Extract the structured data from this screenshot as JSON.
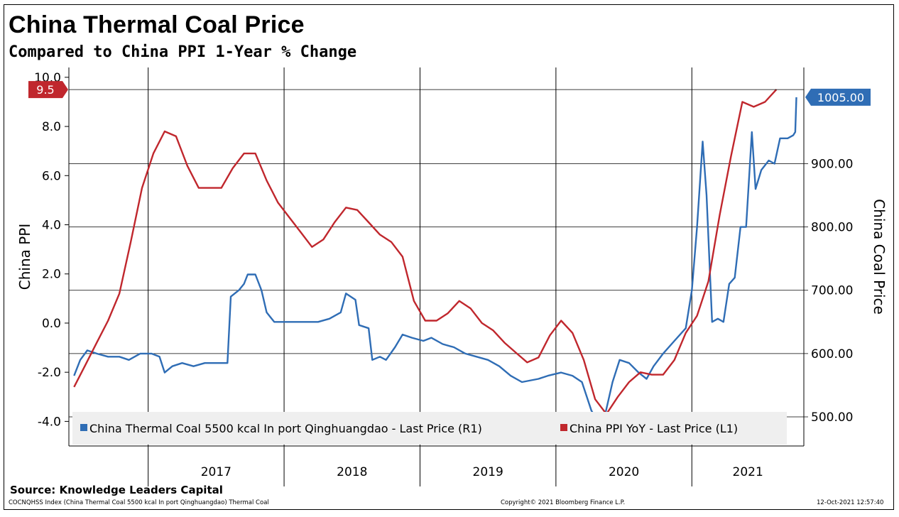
{
  "title": "China Thermal Coal Price",
  "subtitle": "Compared to China PPI 1-Year % Change",
  "source": "Source: Knowledge Leaders Capital",
  "footer": {
    "index_note": "COCNQHSS Index (China Thermal Coal 5500 kcal In port Qinghuangdao) Thermal Coal",
    "copyright": "Copyright© 2021 Bloomberg Finance L.P.",
    "timestamp": "12-Oct-2021 12:57:40"
  },
  "colors": {
    "coal": "#2f6db5",
    "ppi": "#c0272d",
    "legend_bg": "#efefef",
    "grid": "#000000"
  },
  "chart_data": {
    "type": "line",
    "x_axis": {
      "labels": [
        "2017",
        "2018",
        "2019",
        "2020",
        "2021"
      ],
      "range": [
        "2016-06",
        "2021-10"
      ]
    },
    "left_axis": {
      "title": "China PPI",
      "range": [
        -5,
        10.4
      ],
      "ticks": [
        "10.0",
        "8.0",
        "6.0",
        "4.0",
        "2.0",
        "0.0",
        "-2.0",
        "-4.0"
      ]
    },
    "right_axis": {
      "title": "China Coal Price",
      "range": [
        454,
        1052
      ],
      "ticks": [
        "900.00",
        "800.00",
        "700.00",
        "600.00",
        "500.00"
      ]
    },
    "last_value_labels": {
      "ppi": "9.5",
      "coal": "1005.00"
    },
    "legend": {
      "placement": "bottom"
    },
    "series": [
      {
        "name": "China Thermal Coal 5500 kcal In port Qinghuangdao - Last Price (R1)",
        "axis": "right",
        "points": [
          [
            "2016-06-15",
            565
          ],
          [
            "2016-07-01",
            590
          ],
          [
            "2016-07-20",
            605
          ],
          [
            "2016-08-15",
            600
          ],
          [
            "2016-09-15",
            595
          ],
          [
            "2016-10-15",
            595
          ],
          [
            "2016-11-10",
            590
          ],
          [
            "2016-12-10",
            600
          ],
          [
            "2017-01-10",
            600
          ],
          [
            "2017-02-01",
            595
          ],
          [
            "2017-02-15",
            570
          ],
          [
            "2017-03-05",
            580
          ],
          [
            "2017-04-01",
            585
          ],
          [
            "2017-05-01",
            580
          ],
          [
            "2017-06-01",
            585
          ],
          [
            "2017-07-01",
            585
          ],
          [
            "2017-08-01",
            585
          ],
          [
            "2017-08-10",
            690
          ],
          [
            "2017-09-01",
            700
          ],
          [
            "2017-09-15",
            710
          ],
          [
            "2017-09-25",
            725
          ],
          [
            "2017-10-15",
            725
          ],
          [
            "2017-11-01",
            700
          ],
          [
            "2017-11-15",
            665
          ],
          [
            "2017-12-05",
            650
          ],
          [
            "2018-01-01",
            650
          ],
          [
            "2018-02-01",
            650
          ],
          [
            "2018-03-01",
            650
          ],
          [
            "2018-04-01",
            650
          ],
          [
            "2018-05-01",
            655
          ],
          [
            "2018-06-01",
            665
          ],
          [
            "2018-06-15",
            695
          ],
          [
            "2018-07-10",
            685
          ],
          [
            "2018-07-20",
            645
          ],
          [
            "2018-08-15",
            640
          ],
          [
            "2018-08-25",
            590
          ],
          [
            "2018-09-15",
            595
          ],
          [
            "2018-10-01",
            590
          ],
          [
            "2018-10-25",
            610
          ],
          [
            "2018-11-15",
            630
          ],
          [
            "2018-12-10",
            625
          ],
          [
            "2019-01-10",
            620
          ],
          [
            "2019-02-01",
            625
          ],
          [
            "2019-03-01",
            615
          ],
          [
            "2019-04-01",
            610
          ],
          [
            "2019-05-01",
            600
          ],
          [
            "2019-06-01",
            595
          ],
          [
            "2019-07-01",
            590
          ],
          [
            "2019-08-01",
            580
          ],
          [
            "2019-09-01",
            565
          ],
          [
            "2019-10-01",
            555
          ],
          [
            "2019-11-15",
            560
          ],
          [
            "2019-12-10",
            565
          ],
          [
            "2020-01-15",
            570
          ],
          [
            "2020-02-15",
            565
          ],
          [
            "2020-03-10",
            555
          ],
          [
            "2020-04-05",
            510
          ],
          [
            "2020-04-20",
            495
          ],
          [
            "2020-05-10",
            500
          ],
          [
            "2020-06-01",
            555
          ],
          [
            "2020-06-20",
            590
          ],
          [
            "2020-07-15",
            585
          ],
          [
            "2020-08-10",
            570
          ],
          [
            "2020-09-01",
            560
          ],
          [
            "2020-09-20",
            580
          ],
          [
            "2020-10-15",
            600
          ],
          [
            "2020-11-15",
            620
          ],
          [
            "2020-12-15",
            640
          ],
          [
            "2021-01-01",
            700
          ],
          [
            "2021-01-15",
            800
          ],
          [
            "2021-01-30",
            935
          ],
          [
            "2021-02-10",
            850
          ],
          [
            "2021-02-25",
            650
          ],
          [
            "2021-03-10",
            655
          ],
          [
            "2021-03-25",
            650
          ],
          [
            "2021-04-10",
            710
          ],
          [
            "2021-04-25",
            720
          ],
          [
            "2021-05-10",
            800
          ],
          [
            "2021-05-25",
            800
          ],
          [
            "2021-06-10",
            950
          ],
          [
            "2021-06-20",
            860
          ],
          [
            "2021-07-05",
            890
          ],
          [
            "2021-07-25",
            905
          ],
          [
            "2021-08-10",
            900
          ],
          [
            "2021-08-25",
            940
          ],
          [
            "2021-09-15",
            940
          ],
          [
            "2021-09-30",
            945
          ],
          [
            "2021-10-05",
            950
          ],
          [
            "2021-10-08",
            1005
          ]
        ]
      },
      {
        "name": "China PPI YoY - Last Price (L1)",
        "axis": "left",
        "points": [
          [
            "2016-06",
            -2.6
          ],
          [
            "2016-07",
            -1.7
          ],
          [
            "2016-08",
            -0.8
          ],
          [
            "2016-09",
            0.1
          ],
          [
            "2016-10",
            1.2
          ],
          [
            "2016-11",
            3.3
          ],
          [
            "2016-12",
            5.5
          ],
          [
            "2017-01",
            6.9
          ],
          [
            "2017-02",
            7.8
          ],
          [
            "2017-03",
            7.6
          ],
          [
            "2017-04",
            6.4
          ],
          [
            "2017-05",
            5.5
          ],
          [
            "2017-06",
            5.5
          ],
          [
            "2017-07",
            5.5
          ],
          [
            "2017-08",
            6.3
          ],
          [
            "2017-09",
            6.9
          ],
          [
            "2017-10",
            6.9
          ],
          [
            "2017-11",
            5.8
          ],
          [
            "2017-12",
            4.9
          ],
          [
            "2018-01",
            4.3
          ],
          [
            "2018-02",
            3.7
          ],
          [
            "2018-03",
            3.1
          ],
          [
            "2018-04",
            3.4
          ],
          [
            "2018-05",
            4.1
          ],
          [
            "2018-06",
            4.7
          ],
          [
            "2018-07",
            4.6
          ],
          [
            "2018-08",
            4.1
          ],
          [
            "2018-09",
            3.6
          ],
          [
            "2018-10",
            3.3
          ],
          [
            "2018-11",
            2.7
          ],
          [
            "2018-12",
            0.9
          ],
          [
            "2019-01",
            0.1
          ],
          [
            "2019-02",
            0.1
          ],
          [
            "2019-03",
            0.4
          ],
          [
            "2019-04",
            0.9
          ],
          [
            "2019-05",
            0.6
          ],
          [
            "2019-06",
            0.0
          ],
          [
            "2019-07",
            -0.3
          ],
          [
            "2019-08",
            -0.8
          ],
          [
            "2019-09",
            -1.2
          ],
          [
            "2019-10",
            -1.6
          ],
          [
            "2019-11",
            -1.4
          ],
          [
            "2019-12",
            -0.5
          ],
          [
            "2020-01",
            0.1
          ],
          [
            "2020-02",
            -0.4
          ],
          [
            "2020-03",
            -1.5
          ],
          [
            "2020-04",
            -3.1
          ],
          [
            "2020-05",
            -3.7
          ],
          [
            "2020-06",
            -3.0
          ],
          [
            "2020-07",
            -2.4
          ],
          [
            "2020-08",
            -2.0
          ],
          [
            "2020-09",
            -2.1
          ],
          [
            "2020-10",
            -2.1
          ],
          [
            "2020-11",
            -1.5
          ],
          [
            "2020-12",
            -0.4
          ],
          [
            "2021-01",
            0.3
          ],
          [
            "2021-02",
            1.7
          ],
          [
            "2021-03",
            4.4
          ],
          [
            "2021-04",
            6.8
          ],
          [
            "2021-05",
            9.0
          ],
          [
            "2021-06",
            8.8
          ],
          [
            "2021-07",
            9.0
          ],
          [
            "2021-08",
            9.5
          ]
        ]
      }
    ]
  }
}
